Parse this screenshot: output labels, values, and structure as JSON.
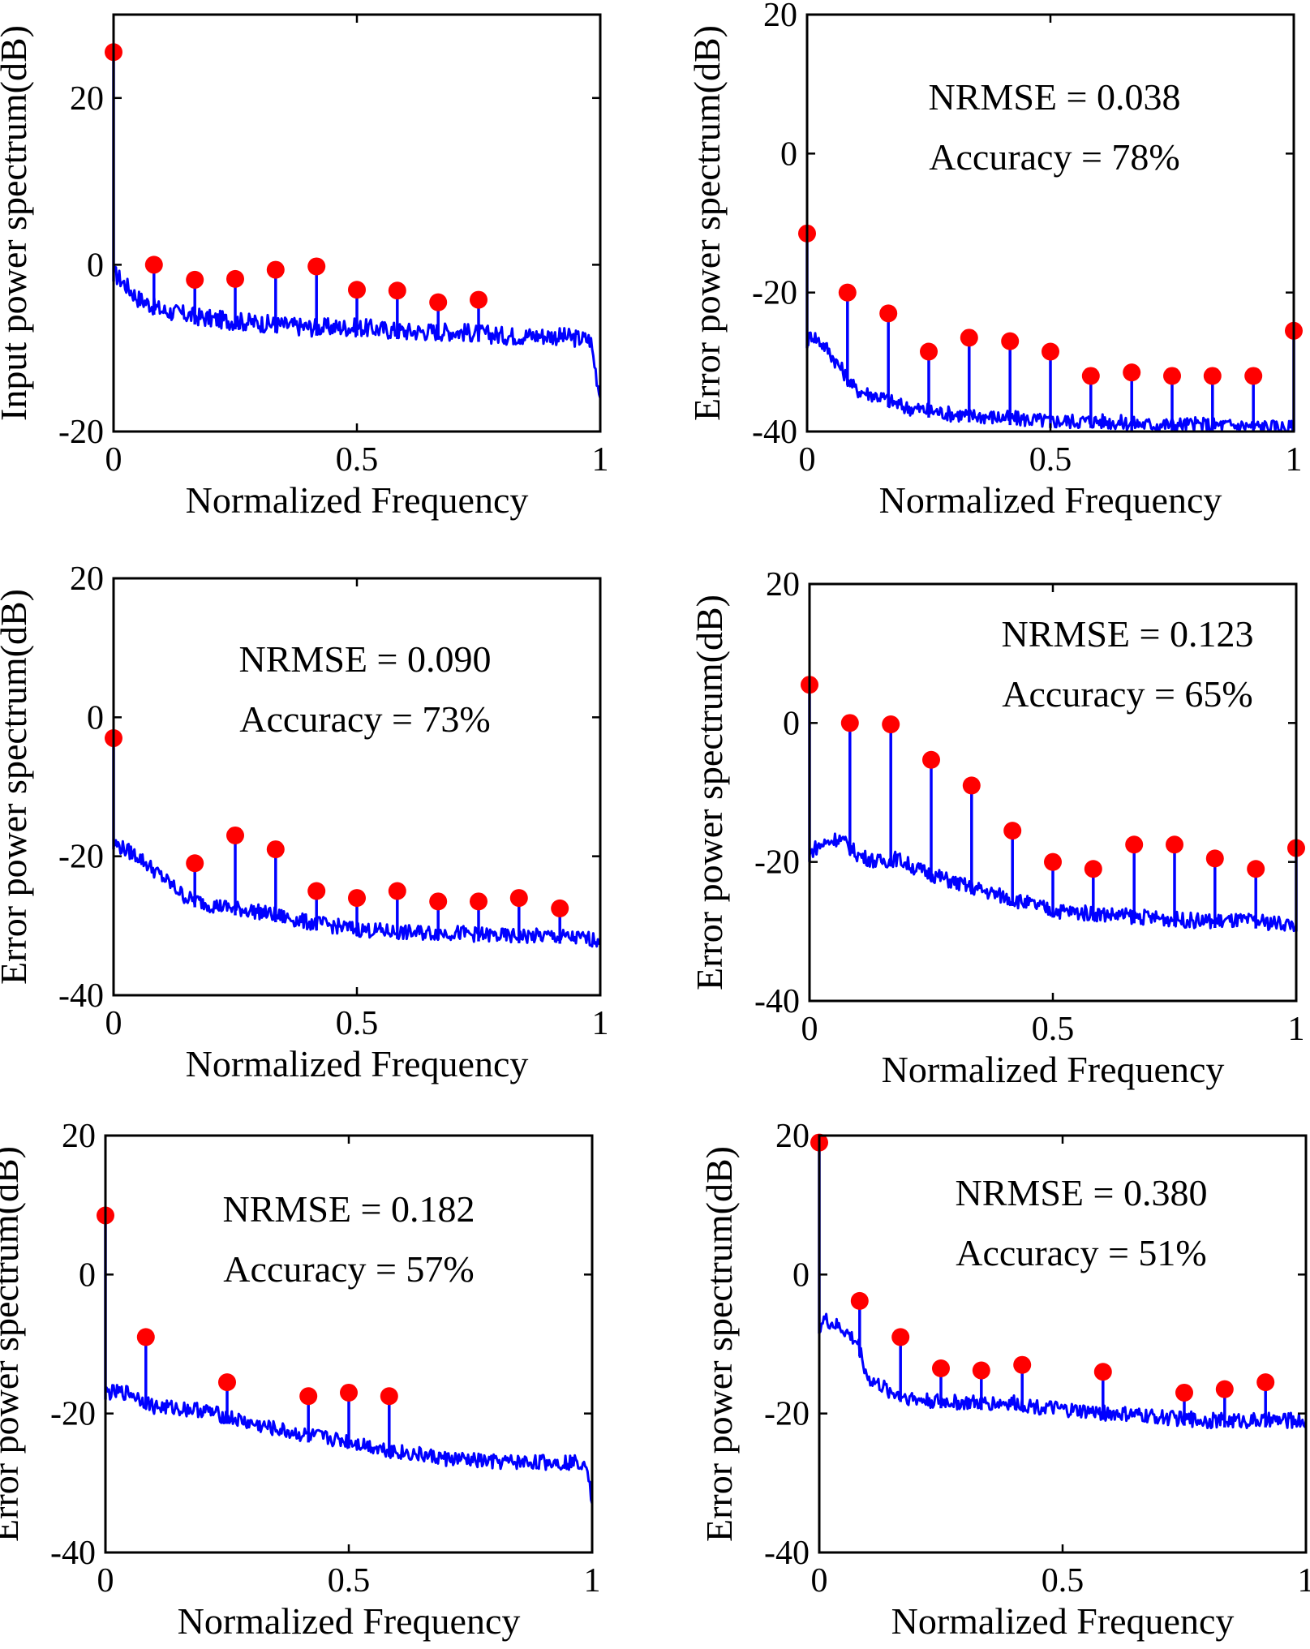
{
  "chart_data": [
    {
      "type": "line",
      "subtype": "stem-spectrum",
      "xlabel": "Normalized Frequency",
      "ylabel": "Input power spectrum(dB)",
      "xlim": [
        0,
        1
      ],
      "ylim": [
        -20,
        30
      ],
      "xticks": [
        0,
        0.5,
        1
      ],
      "xtick_labels": [
        "0",
        "0.5",
        "1"
      ],
      "yticks": [
        -20,
        0,
        20
      ],
      "ytick_labels": [
        "-20",
        "0",
        "20"
      ],
      "annotations": [],
      "grid": false,
      "legend": "none",
      "series_colors": {
        "trace": "#0000ff",
        "stems": "#0000ff",
        "markers": "#ff0000"
      },
      "floor": {
        "x": [
          0,
          0.01,
          0.05,
          0.1,
          0.2,
          0.3,
          0.4,
          0.5,
          0.6,
          0.7,
          0.8,
          0.9,
          0.98,
          1.0
        ],
        "y": [
          -1,
          -1.5,
          -4,
          -5.5,
          -6.5,
          -7,
          -7.5,
          -7.5,
          -8,
          -8,
          -8.5,
          -8.5,
          -9,
          -16
        ]
      },
      "peaks": {
        "x": [
          0,
          0.083,
          0.167,
          0.25,
          0.333,
          0.417,
          0.5,
          0.583,
          0.667,
          0.75
        ],
        "y": [
          25.5,
          0,
          -1.8,
          -1.7,
          -0.6,
          -0.2,
          -3,
          -3.1,
          -4.5,
          -4.2
        ]
      }
    },
    {
      "type": "line",
      "subtype": "stem-spectrum",
      "xlabel": "Normalized Frequency",
      "ylabel": "Error power spectrum(dB)",
      "xlim": [
        0,
        1
      ],
      "ylim": [
        -40,
        20
      ],
      "xticks": [
        0,
        0.5,
        1
      ],
      "xtick_labels": [
        "0",
        "0.5",
        "1"
      ],
      "yticks": [
        -40,
        -20,
        0,
        20
      ],
      "ytick_labels": [
        "-40",
        "-20",
        "0",
        "20"
      ],
      "annotations": [
        "NRMSE = 0.038",
        "Accuracy = 78%"
      ],
      "grid": false,
      "legend": "none",
      "series_colors": {
        "trace": "#0000ff",
        "stems": "#0000ff",
        "markers": "#ff0000"
      },
      "floor": {
        "x": [
          0,
          0.01,
          0.04,
          0.07,
          0.1,
          0.15,
          0.2,
          0.3,
          0.4,
          0.5,
          0.6,
          0.7,
          0.8,
          0.9,
          1.0
        ],
        "y": [
          -27,
          -26,
          -28,
          -31,
          -34,
          -35,
          -36.5,
          -37.5,
          -38,
          -38.5,
          -38.5,
          -39,
          -39,
          -39.2,
          -39.5
        ]
      },
      "peaks": {
        "x": [
          0,
          0.083,
          0.167,
          0.25,
          0.333,
          0.417,
          0.5,
          0.583,
          0.667,
          0.75,
          0.833,
          0.917,
          1.0
        ],
        "y": [
          -11.5,
          -20,
          -23,
          -28.5,
          -26.5,
          -27,
          -28.5,
          -32,
          -31.5,
          -32,
          -32,
          -32,
          -25.5
        ]
      }
    },
    {
      "type": "line",
      "subtype": "stem-spectrum",
      "xlabel": "Normalized Frequency",
      "ylabel": "Error power spectrum(dB)",
      "xlim": [
        0,
        1
      ],
      "ylim": [
        -40,
        20
      ],
      "xticks": [
        0,
        0.5,
        1
      ],
      "xtick_labels": [
        "0",
        "0.5",
        "1"
      ],
      "yticks": [
        -40,
        -20,
        0,
        20
      ],
      "ytick_labels": [
        "-40",
        "-20",
        "0",
        "20"
      ],
      "annotations": [
        "NRMSE = 0.090",
        "Accuracy = 73%"
      ],
      "grid": false,
      "legend": "none",
      "series_colors": {
        "trace": "#0000ff",
        "stems": "#0000ff",
        "markers": "#ff0000"
      },
      "floor": {
        "x": [
          0,
          0.01,
          0.05,
          0.1,
          0.15,
          0.2,
          0.3,
          0.4,
          0.5,
          0.6,
          0.7,
          0.8,
          0.9,
          1.0
        ],
        "y": [
          -18,
          -18.5,
          -20,
          -23,
          -26,
          -27,
          -28,
          -29.5,
          -30.5,
          -31,
          -31,
          -31.5,
          -31.5,
          -32
        ]
      },
      "peaks": {
        "x": [
          0,
          0.167,
          0.25,
          0.333,
          0.417,
          0.5,
          0.583,
          0.667,
          0.75,
          0.833,
          0.917
        ],
        "y": [
          -3,
          -21,
          -17,
          -19,
          -25,
          -26,
          -25,
          -26.5,
          -26.5,
          -26,
          -27.5
        ]
      }
    },
    {
      "type": "line",
      "subtype": "stem-spectrum",
      "xlabel": "Normalized Frequency",
      "ylabel": "Error power spectrum(dB)",
      "xlim": [
        0,
        1
      ],
      "ylim": [
        -40,
        20
      ],
      "xticks": [
        0,
        0.5,
        1
      ],
      "xtick_labels": [
        "0",
        "0.5",
        "1"
      ],
      "yticks": [
        -40,
        -20,
        0,
        20
      ],
      "ytick_labels": [
        "-40",
        "-20",
        "0",
        "20"
      ],
      "annotations": [
        "NRMSE = 0.123",
        "Accuracy = 65%"
      ],
      "grid": false,
      "legend": "none",
      "series_colors": {
        "trace": "#0000ff",
        "stems": "#0000ff",
        "markers": "#ff0000"
      },
      "floor": {
        "x": [
          0,
          0.01,
          0.06,
          0.1,
          0.14,
          0.18,
          0.22,
          0.3,
          0.4,
          0.5,
          0.6,
          0.7,
          0.8,
          0.9,
          1.0
        ],
        "y": [
          -19,
          -18,
          -16.5,
          -19,
          -20,
          -19.5,
          -21,
          -23,
          -25,
          -27,
          -27.5,
          -28,
          -28.5,
          -28.5,
          -29
        ]
      },
      "peaks": {
        "x": [
          0,
          0.083,
          0.167,
          0.25,
          0.333,
          0.417,
          0.5,
          0.583,
          0.667,
          0.75,
          0.833,
          0.917,
          1.0
        ],
        "y": [
          5.5,
          0,
          -0.2,
          -5.3,
          -9,
          -15.5,
          -20,
          -21,
          -17.5,
          -17.5,
          -19.5,
          -21,
          -18
        ]
      }
    },
    {
      "type": "line",
      "subtype": "stem-spectrum",
      "xlabel": "Normalized Frequency",
      "ylabel": "Error power spectrum(dB)",
      "xlim": [
        0,
        1
      ],
      "ylim": [
        -40,
        20
      ],
      "xticks": [
        0,
        0.5,
        1
      ],
      "xtick_labels": [
        "0",
        "0.5",
        "1"
      ],
      "yticks": [
        -40,
        -20,
        0,
        20
      ],
      "ytick_labels": [
        "-40",
        "-20",
        "0",
        "20"
      ],
      "annotations": [
        "NRMSE = 0.182",
        "Accuracy = 57%"
      ],
      "grid": false,
      "legend": "none",
      "series_colors": {
        "trace": "#0000ff",
        "stems": "#0000ff",
        "markers": "#ff0000"
      },
      "floor": {
        "x": [
          0,
          0.01,
          0.05,
          0.1,
          0.2,
          0.3,
          0.4,
          0.5,
          0.6,
          0.7,
          0.8,
          0.9,
          0.99,
          1.0
        ],
        "y": [
          -17,
          -17,
          -17,
          -19,
          -19.5,
          -21.5,
          -23,
          -24,
          -25.5,
          -26.5,
          -27,
          -27,
          -27,
          -33
        ]
      },
      "peaks": {
        "x": [
          0,
          0.083,
          0.25,
          0.417,
          0.5,
          0.583
        ],
        "y": [
          8.5,
          -9,
          -15.5,
          -17.5,
          -17,
          -17.5
        ]
      }
    },
    {
      "type": "line",
      "subtype": "stem-spectrum",
      "xlabel": "Normalized Frequency",
      "ylabel": "Error power spectrum(dB)",
      "xlim": [
        0,
        1
      ],
      "ylim": [
        -40,
        20
      ],
      "xticks": [
        0,
        0.5,
        1
      ],
      "xtick_labels": [
        "0",
        "0.5",
        "1"
      ],
      "yticks": [
        -40,
        -20,
        0,
        20
      ],
      "ytick_labels": [
        "-40",
        "-20",
        "0",
        "20"
      ],
      "annotations": [
        "NRMSE = 0.380",
        "Accuracy = 51%"
      ],
      "grid": false,
      "legend": "none",
      "series_colors": {
        "trace": "#0000ff",
        "stems": "#0000ff",
        "markers": "#ff0000"
      },
      "floor": {
        "x": [
          0,
          0.01,
          0.05,
          0.08,
          0.1,
          0.15,
          0.2,
          0.3,
          0.4,
          0.5,
          0.6,
          0.7,
          0.8,
          0.9,
          1.0
        ],
        "y": [
          -7.5,
          -6.5,
          -8,
          -10,
          -15,
          -17,
          -18,
          -18.5,
          -18.5,
          -19.5,
          -20,
          -20.5,
          -21,
          -21,
          -21
        ]
      },
      "peaks": {
        "x": [
          0,
          0.083,
          0.167,
          0.25,
          0.333,
          0.417,
          0.583,
          0.75,
          0.833,
          0.917
        ],
        "y": [
          19,
          -3.8,
          -9,
          -13.5,
          -13.8,
          -13,
          -14,
          -17,
          -16.5,
          -15.5
        ]
      }
    }
  ]
}
